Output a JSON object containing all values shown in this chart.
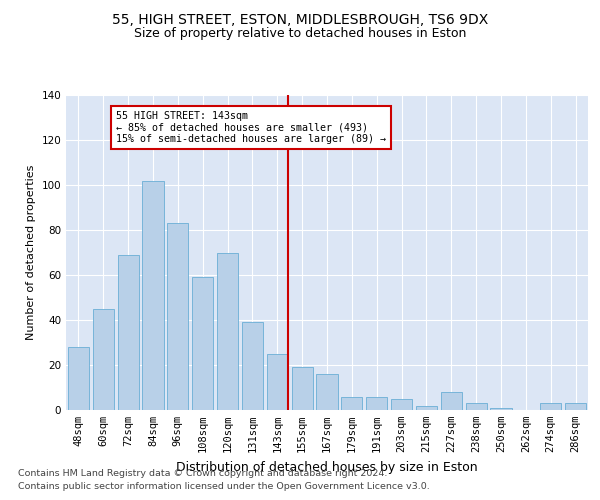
{
  "title1": "55, HIGH STREET, ESTON, MIDDLESBROUGH, TS6 9DX",
  "title2": "Size of property relative to detached houses in Eston",
  "xlabel": "Distribution of detached houses by size in Eston",
  "ylabel": "Number of detached properties",
  "categories": [
    "48sqm",
    "60sqm",
    "72sqm",
    "84sqm",
    "96sqm",
    "108sqm",
    "120sqm",
    "131sqm",
    "143sqm",
    "155sqm",
    "167sqm",
    "179sqm",
    "191sqm",
    "203sqm",
    "215sqm",
    "227sqm",
    "238sqm",
    "250sqm",
    "262sqm",
    "274sqm",
    "286sqm"
  ],
  "values": [
    28,
    45,
    69,
    102,
    83,
    59,
    70,
    39,
    25,
    19,
    16,
    6,
    6,
    5,
    2,
    8,
    3,
    1,
    0,
    3,
    3
  ],
  "bar_color": "#b8d0e8",
  "bar_edge_color": "#6aaed6",
  "highlight_index": 8,
  "highlight_line_color": "#cc0000",
  "annotation_text": "55 HIGH STREET: 143sqm\n← 85% of detached houses are smaller (493)\n15% of semi-detached houses are larger (89) →",
  "annotation_box_color": "#cc0000",
  "ylim": [
    0,
    140
  ],
  "yticks": [
    0,
    20,
    40,
    60,
    80,
    100,
    120,
    140
  ],
  "background_color": "#dce6f5",
  "footer1": "Contains HM Land Registry data © Crown copyright and database right 2024.",
  "footer2": "Contains public sector information licensed under the Open Government Licence v3.0.",
  "title1_fontsize": 10,
  "title2_fontsize": 9,
  "xlabel_fontsize": 9,
  "ylabel_fontsize": 8,
  "tick_fontsize": 7.5,
  "footer_fontsize": 6.8
}
